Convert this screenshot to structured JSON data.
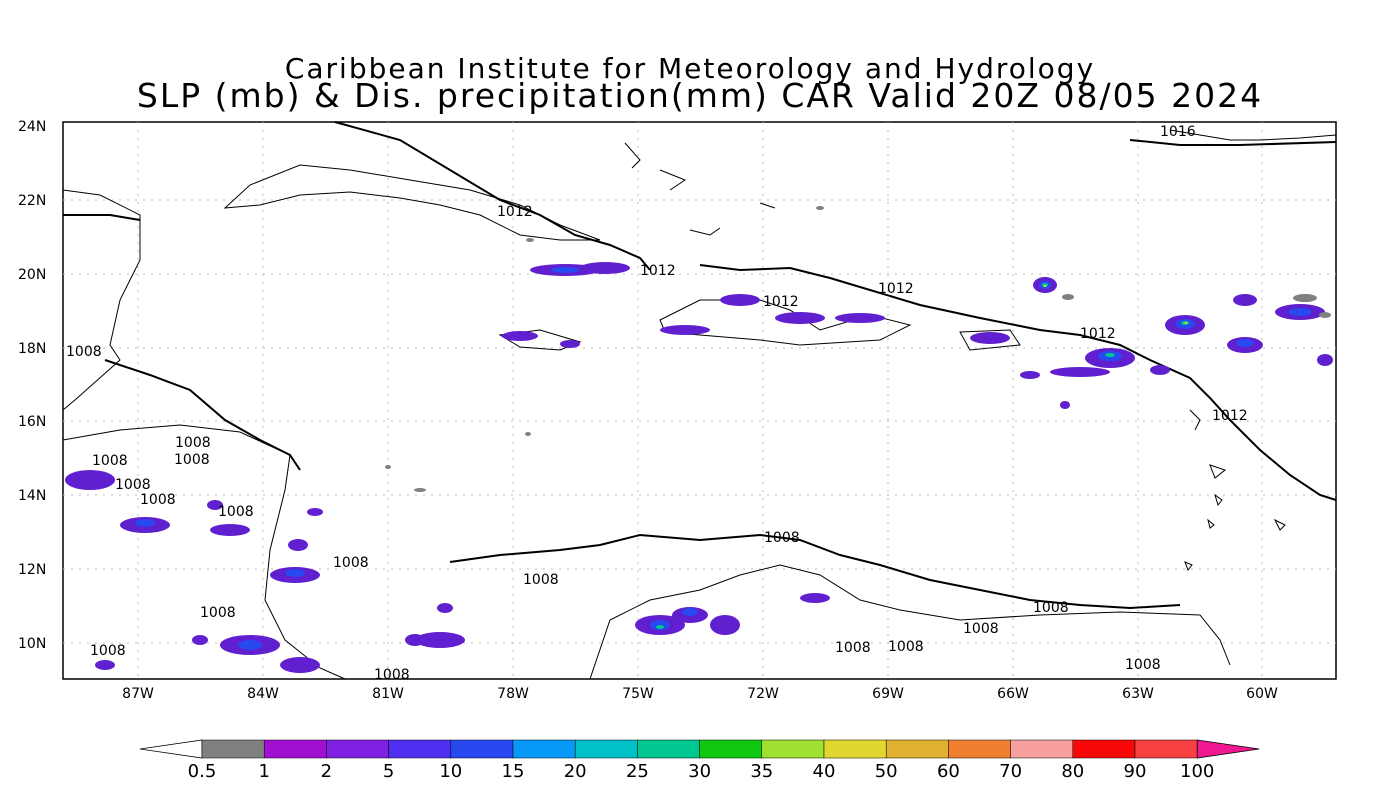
{
  "map": {
    "title_line1": "Caribbean Institute for Meteorology and Hydrology",
    "title_line2": "SLP (mb) & Dis. precipitation(mm) CAR Valid 20Z 08/05 2024",
    "lat_labels": [
      "24N",
      "22N",
      "20N",
      "18N",
      "16N",
      "14N",
      "12N",
      "10N"
    ],
    "lon_labels": [
      "87W",
      "84W",
      "81W",
      "78W",
      "75W",
      "72W",
      "69W",
      "66W",
      "63W",
      "60W"
    ],
    "isobar_labels": [
      "1016",
      "1012",
      "1012",
      "1012",
      "1012",
      "1012",
      "1012",
      "1008",
      "1008",
      "1008",
      "1008",
      "1008",
      "1008",
      "1008",
      "1008",
      "1008",
      "1008",
      "1008",
      "1008",
      "1008",
      "1008",
      "1008",
      "1008",
      "1008"
    ]
  },
  "colorbar": {
    "labels": [
      "0.5",
      "1",
      "2",
      "5",
      "10",
      "15",
      "20",
      "25",
      "30",
      "35",
      "40",
      "50",
      "60",
      "70",
      "80",
      "90",
      "100"
    ],
    "colors": [
      "#808080",
      "#a010d0",
      "#8020e0",
      "#5030f0",
      "#2848f0",
      "#0898f8",
      "#00c0c8",
      "#00c890",
      "#10c810",
      "#a0e030",
      "#e0d830",
      "#e0b030",
      "#f08030",
      "#f8a0a0",
      "#f80808",
      "#f84040"
    ],
    "end_low": "#ffffff",
    "end_high": "#f01890"
  }
}
